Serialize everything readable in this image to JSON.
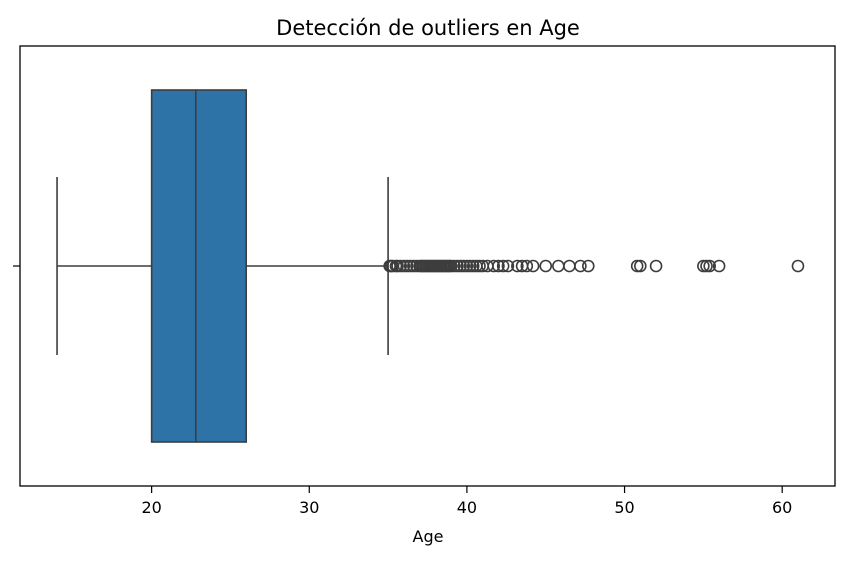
{
  "chart_data": {
    "type": "boxplot",
    "title": "Detección de outliers en Age",
    "xlabel": "Age",
    "ylabel": "",
    "xlim": [
      11.65,
      63.35
    ],
    "xticks": [
      20,
      30,
      40,
      50,
      60
    ],
    "xtick_labels": [
      "20",
      "30",
      "40",
      "50",
      "60"
    ],
    "orientation": "horizontal",
    "box_color": "#2e73a8",
    "line_color": "#3d3d3d",
    "grid": false,
    "box": {
      "whisker_low": 14.0,
      "q1": 20.0,
      "median": 22.8,
      "q3": 26.0,
      "whisker_high": 35.0
    },
    "outliers": [
      35.1,
      35.2,
      35.3,
      35.5,
      35.6,
      35.8,
      36.0,
      36.2,
      36.4,
      36.6,
      36.8,
      37.0,
      37.1,
      37.2,
      37.3,
      37.4,
      37.5,
      37.6,
      37.7,
      37.8,
      37.9,
      38.0,
      38.1,
      38.2,
      38.3,
      38.4,
      38.5,
      38.6,
      38.7,
      38.8,
      38.9,
      39.0,
      39.2,
      39.4,
      39.6,
      39.8,
      40.0,
      40.2,
      40.4,
      40.6,
      40.8,
      41.0,
      41.3,
      41.7,
      42.0,
      42.3,
      42.6,
      43.2,
      43.5,
      43.8,
      44.2,
      45.0,
      45.8,
      46.5,
      47.2,
      47.7,
      50.8,
      51.0,
      52.0,
      55.0,
      55.2,
      55.4,
      56.0,
      61.0
    ]
  }
}
